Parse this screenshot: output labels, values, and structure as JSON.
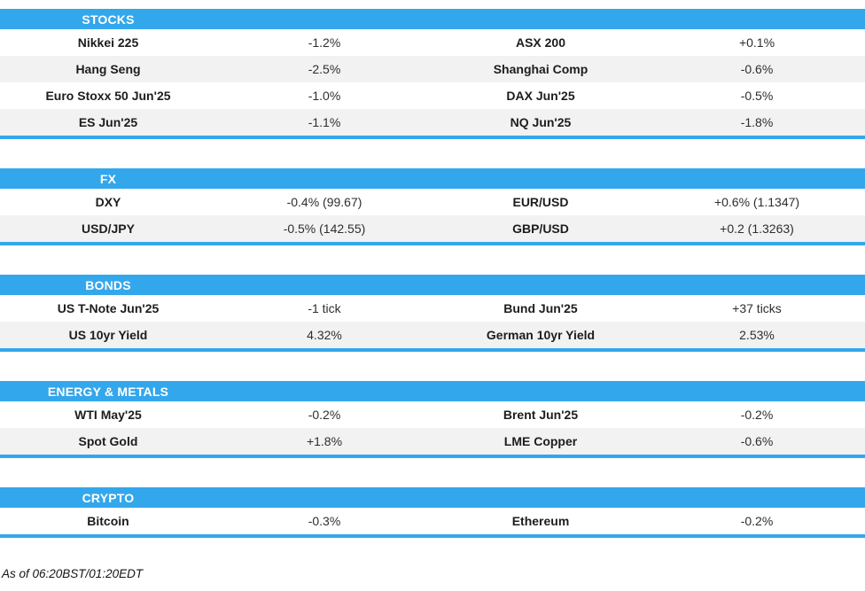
{
  "theme": {
    "accent": "#33a7ec",
    "row_alt": "#f2f2f2",
    "text": "#1d1d1f",
    "header_text": "#ffffff"
  },
  "sections": [
    {
      "title": "STOCKS",
      "rows": [
        {
          "left_label": "Nikkei 225",
          "left_value": "-1.2%",
          "right_label": "ASX 200",
          "right_value": "+0.1%"
        },
        {
          "left_label": "Hang Seng",
          "left_value": "-2.5%",
          "right_label": "Shanghai Comp",
          "right_value": "-0.6%"
        },
        {
          "left_label": "Euro Stoxx 50 Jun'25",
          "left_value": "-1.0%",
          "right_label": "DAX Jun'25",
          "right_value": "-0.5%"
        },
        {
          "left_label": "ES Jun'25",
          "left_value": "-1.1%",
          "right_label": "NQ Jun'25",
          "right_value": "-1.8%"
        }
      ]
    },
    {
      "title": "FX",
      "rows": [
        {
          "left_label": "DXY",
          "left_value": "-0.4% (99.67)",
          "right_label": "EUR/USD",
          "right_value": "+0.6% (1.1347)"
        },
        {
          "left_label": "USD/JPY",
          "left_value": "-0.5% (142.55)",
          "right_label": "GBP/USD",
          "right_value": "+0.2 (1.3263)"
        }
      ]
    },
    {
      "title": "BONDS",
      "rows": [
        {
          "left_label": "US T-Note Jun'25",
          "left_value": "-1 tick",
          "right_label": "Bund Jun'25",
          "right_value": "+37 ticks"
        },
        {
          "left_label": "US 10yr Yield",
          "left_value": "4.32%",
          "right_label": "German 10yr Yield",
          "right_value": "2.53%"
        }
      ]
    },
    {
      "title": "ENERGY & METALS",
      "rows": [
        {
          "left_label": "WTI May'25",
          "left_value": "-0.2%",
          "right_label": "Brent Jun'25",
          "right_value": "-0.2%"
        },
        {
          "left_label": "Spot Gold",
          "left_value": "+1.8%",
          "right_label": "LME Copper",
          "right_value": "-0.6%"
        }
      ]
    },
    {
      "title": "CRYPTO",
      "rows": [
        {
          "left_label": "Bitcoin",
          "left_value": "-0.3%",
          "right_label": "Ethereum",
          "right_value": "-0.2%"
        }
      ]
    }
  ],
  "footer": {
    "as_of": "As of 06:20BST/01:20EDT"
  }
}
